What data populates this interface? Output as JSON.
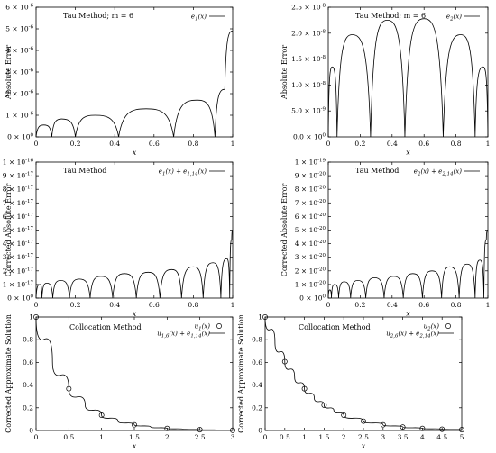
{
  "figure": {
    "panels": [
      {
        "id": "tau-e1",
        "ylabel": "Absolute Error",
        "xlabel": "x",
        "annotation": "Tau Method; m = 6",
        "legend": [
          "e1(x)"
        ],
        "yticks": [
          "0 × 10^0",
          "1 × 10^-6",
          "2 × 10^-6",
          "3 × 10^-6",
          "4 × 10^-6",
          "5 × 10^-6",
          "6 × 10^-6"
        ],
        "xticks": [
          "0",
          "0.2",
          "0.4",
          "0.6",
          "0.8",
          "1"
        ]
      },
      {
        "id": "tau-e2",
        "ylabel": "Absolute Error",
        "xlabel": "x",
        "annotation": "Tau Method; m = 6",
        "legend": [
          "e2(x)"
        ],
        "yticks": [
          "0.0 × 10^0",
          "5.0 × 10^-9",
          "1.0 × 10^-8",
          "1.5 × 10^-8",
          "2.0 × 10^-8",
          "2.5 × 10^-8"
        ],
        "xticks": [
          "0",
          "0.2",
          "0.4",
          "0.6",
          "0.8",
          "1"
        ]
      },
      {
        "id": "corr-e1",
        "ylabel": "Corrected Absolute Error",
        "xlabel": "x",
        "annotation": "Tau Method",
        "legend": [
          "e1(x) + e1,14(x)"
        ],
        "yticks": [
          "0 × 10^0",
          "1 × 10^-17",
          "2 × 10^-17",
          "3 × 10^-17",
          "4 × 10^-17",
          "5 × 10^-17",
          "6 × 10^-17",
          "7 × 10^-17",
          "8 × 10^-17",
          "9 × 10^-17",
          "1 × 10^-16"
        ],
        "xticks": [
          "0",
          "0.2",
          "0.4",
          "0.6",
          "0.8",
          "1"
        ]
      },
      {
        "id": "corr-e2",
        "ylabel": "Corrected Absolute Error",
        "xlabel": "x",
        "annotation": "Tau Method",
        "legend": [
          "e2(x) + e2,14(x)"
        ],
        "yticks": [
          "0 × 10^0",
          "1 × 10^-20",
          "2 × 10^-20",
          "3 × 10^-20",
          "4 × 10^-20",
          "5 × 10^-20",
          "6 × 10^-20",
          "7 × 10^-20",
          "8 × 10^-20",
          "9 × 10^-20",
          "1 × 10^-19"
        ],
        "xticks": [
          "0",
          "0.2",
          "0.4",
          "0.6",
          "0.8",
          "1"
        ]
      },
      {
        "id": "coll-u1",
        "ylabel": "Corrected Approximate Solution",
        "xlabel": "x",
        "annotation": "Collocation Method",
        "legend": [
          "u1(x)",
          "u1,6(x) + e1,14(x)"
        ],
        "yticks": [
          "0",
          "0.2",
          "0.4",
          "0.6",
          "0.8",
          "1"
        ],
        "xticks": [
          "0",
          "0.5",
          "1",
          "1.5",
          "2",
          "2.5",
          "3"
        ]
      },
      {
        "id": "coll-u2",
        "ylabel": "Corrected Approximate Solution",
        "xlabel": "x",
        "annotation": "Collocation Method",
        "legend": [
          "u2(x)",
          "u2,6(x) + e2,14(x)"
        ],
        "yticks": [
          "0",
          "0.2",
          "0.4",
          "0.6",
          "0.8",
          "1"
        ],
        "xticks": [
          "0",
          "0.5",
          "1",
          "1.5",
          "2",
          "2.5",
          "3",
          "3.5",
          "4",
          "4.5",
          "5"
        ]
      }
    ]
  },
  "chart_data": [
    {
      "type": "line",
      "ylabel": "Absolute Error",
      "xlabel": "x",
      "xlim": [
        0,
        1
      ],
      "ylim": [
        0,
        6e-06
      ],
      "series": [
        {
          "name": "e1(x)",
          "x": [
            0,
            0.04,
            0.08,
            0.13,
            0.2,
            0.3,
            0.42,
            0.56,
            0.7,
            0.82,
            0.91,
            0.96,
            1.0
          ],
          "y": [
            0,
            5.5e-07,
            0,
            8.3e-07,
            0,
            1e-06,
            0,
            1.3e-06,
            0,
            1.7e-06,
            0,
            2.2e-06,
            4.9e-06
          ]
        }
      ]
    },
    {
      "type": "line",
      "ylabel": "Absolute Error",
      "xlabel": "x",
      "xlim": [
        0,
        1
      ],
      "ylim": [
        0,
        2.5e-08
      ],
      "series": [
        {
          "name": "e2(x)",
          "x": [
            0,
            0.025,
            0.055,
            0.15,
            0.265,
            0.37,
            0.48,
            0.6,
            0.72,
            0.83,
            0.92,
            0.97,
            1.0
          ],
          "y": [
            0,
            1.35e-08,
            0,
            1.97e-08,
            0,
            2.25e-08,
            0,
            2.28e-08,
            0,
            1.97e-08,
            0,
            1.35e-08,
            0
          ]
        }
      ]
    },
    {
      "type": "line",
      "ylabel": "Corrected Absolute Error",
      "xlabel": "x",
      "xlim": [
        0,
        1
      ],
      "ylim": [
        0,
        1e-16
      ],
      "series": [
        {
          "name": "e1(x) + e1,14(x)",
          "x": [
            0,
            0.02,
            0.03,
            0.055,
            0.085,
            0.125,
            0.17,
            0.22,
            0.275,
            0.33,
            0.39,
            0.45,
            0.51,
            0.57,
            0.63,
            0.69,
            0.74,
            0.8,
            0.85,
            0.9,
            0.94,
            0.97,
            0.985,
            0.995,
            1.0
          ],
          "y": [
            0,
            1e-17,
            0,
            1.1e-17,
            0,
            1.3e-17,
            0,
            1.4e-17,
            0,
            1.6e-17,
            0,
            1.8e-17,
            0,
            1.9e-17,
            0,
            2.1e-17,
            0,
            2.3e-17,
            0,
            2.6e-17,
            0,
            2.9e-17,
            0,
            4.3e-17,
            5e-17
          ]
        }
      ]
    },
    {
      "type": "line",
      "ylabel": "Corrected Absolute Error",
      "xlabel": "x",
      "xlim": [
        0,
        1
      ],
      "ylim": [
        0,
        1e-19
      ],
      "series": [
        {
          "name": "e2(x) + e2,14(x)",
          "x": [
            0,
            0.01,
            0.02,
            0.04,
            0.065,
            0.1,
            0.14,
            0.185,
            0.235,
            0.29,
            0.35,
            0.41,
            0.47,
            0.53,
            0.59,
            0.65,
            0.71,
            0.76,
            0.82,
            0.87,
            0.92,
            0.95,
            0.975,
            0.99,
            1.0
          ],
          "y": [
            0,
            6e-21,
            0,
            1e-20,
            0,
            1.2e-20,
            0,
            1.3e-20,
            0,
            1.5e-20,
            0,
            1.6e-20,
            0,
            1.8e-20,
            0,
            2e-20,
            0,
            2.3e-20,
            0,
            2.5e-20,
            0,
            2.8e-20,
            0,
            4.3e-20,
            5e-20
          ]
        }
      ]
    },
    {
      "type": "line",
      "ylabel": "Corrected Approximate Solution",
      "xlabel": "x",
      "xlim": [
        0,
        3
      ],
      "ylim": [
        0,
        1
      ],
      "series": [
        {
          "name": "u1(x)",
          "x": [
            0,
            0.5,
            1,
            1.5,
            2,
            2.5,
            3
          ],
          "y": [
            1.0,
            0.368,
            0.135,
            0.05,
            0.018,
            0.007,
            0.002
          ]
        },
        {
          "name": "u1,6(x) + e1,14(x)",
          "x": [
            0,
            0.25,
            0.5,
            0.75,
            1,
            1.25,
            1.5,
            1.75,
            2,
            2.25,
            2.5,
            2.75,
            3
          ],
          "y": [
            1.0,
            0.607,
            0.368,
            0.223,
            0.135,
            0.082,
            0.05,
            0.03,
            0.018,
            0.011,
            0.007,
            0.004,
            0.002
          ]
        }
      ]
    },
    {
      "type": "line",
      "ylabel": "Corrected Approximate Solution",
      "xlabel": "x",
      "xlim": [
        0,
        5
      ],
      "ylim": [
        0,
        1
      ],
      "series": [
        {
          "name": "u2(x)",
          "x": [
            0,
            0.5,
            1,
            1.5,
            2,
            2.5,
            3,
            3.5,
            4,
            4.5,
            5
          ],
          "y": [
            1.0,
            0.607,
            0.368,
            0.223,
            0.135,
            0.082,
            0.05,
            0.03,
            0.018,
            0.011,
            0.007
          ]
        },
        {
          "name": "u2,6(x) + e2,14(x)",
          "x": [
            0,
            0.25,
            0.5,
            0.75,
            1,
            1.25,
            1.5,
            1.75,
            2,
            2.5,
            3,
            3.5,
            4,
            4.5,
            5
          ],
          "y": [
            1.0,
            0.779,
            0.607,
            0.472,
            0.368,
            0.287,
            0.223,
            0.174,
            0.135,
            0.082,
            0.05,
            0.03,
            0.018,
            0.011,
            0.007
          ]
        }
      ]
    }
  ]
}
